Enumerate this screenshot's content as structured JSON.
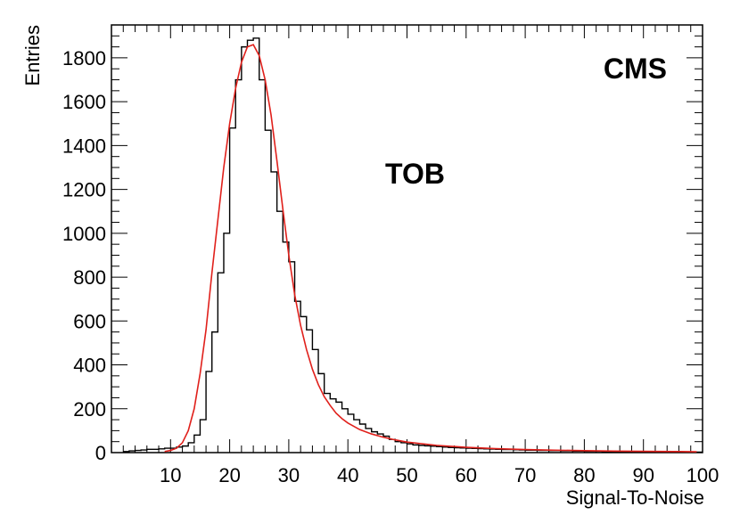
{
  "chart_data": {
    "type": "histogram",
    "xlabel": "Signal-To-Noise",
    "ylabel": "Entries",
    "xlim": [
      0,
      100
    ],
    "ylim": [
      0,
      1950
    ],
    "x_ticks": [
      10,
      20,
      30,
      40,
      50,
      60,
      70,
      80,
      90,
      100
    ],
    "y_ticks": [
      0,
      200,
      400,
      600,
      800,
      1000,
      1200,
      1400,
      1600,
      1800
    ],
    "annotations": {
      "experiment": "CMS",
      "subdetector": "TOB"
    },
    "series": [
      {
        "name": "data",
        "style": "step",
        "color": "#000000",
        "bin_width": 1,
        "x_start": 2,
        "values": [
          5,
          8,
          10,
          12,
          15,
          15,
          17,
          20,
          20,
          25,
          30,
          45,
          80,
          150,
          370,
          550,
          820,
          1000,
          1480,
          1700,
          1850,
          1880,
          1890,
          1700,
          1470,
          1280,
          1100,
          960,
          870,
          690,
          620,
          560,
          470,
          360,
          270,
          245,
          230,
          200,
          175,
          150,
          130,
          110,
          95,
          85,
          75,
          60,
          50,
          45,
          40,
          35,
          33,
          31,
          29,
          27,
          25,
          23,
          22,
          21,
          20,
          19,
          18,
          17,
          16,
          15,
          14,
          14,
          13,
          12,
          11,
          11,
          10,
          10,
          9,
          9,
          8,
          8,
          7,
          7,
          6,
          6,
          6,
          5,
          5,
          5,
          4,
          4,
          4,
          4,
          3,
          3,
          3,
          3,
          3,
          2,
          2,
          2,
          2,
          2
        ]
      },
      {
        "name": "fit",
        "style": "line",
        "color": "#e0201b",
        "x": [
          9,
          10,
          11,
          12,
          13,
          14,
          15,
          16,
          17,
          18,
          19,
          20,
          21,
          22,
          23,
          24,
          25,
          26,
          27,
          28,
          29,
          30,
          31,
          32,
          33,
          34,
          35,
          36,
          37,
          38,
          39,
          40,
          42,
          44,
          46,
          48,
          50,
          55,
          60,
          65,
          70,
          75,
          80,
          85,
          90,
          95,
          99
        ],
        "y": [
          5,
          10,
          20,
          45,
          100,
          200,
          360,
          560,
          820,
          1060,
          1300,
          1500,
          1660,
          1780,
          1850,
          1860,
          1810,
          1700,
          1540,
          1330,
          1110,
          900,
          720,
          580,
          470,
          380,
          310,
          255,
          215,
          180,
          155,
          135,
          105,
          85,
          70,
          58,
          48,
          33,
          24,
          18,
          14,
          11,
          9,
          7,
          6,
          5,
          4
        ]
      }
    ]
  }
}
